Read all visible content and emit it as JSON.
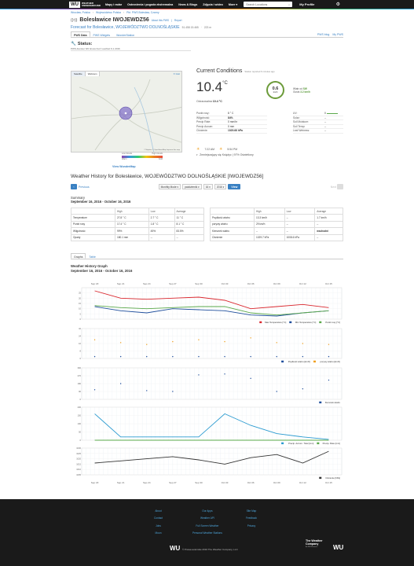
{
  "topbar": {
    "logo_mark": "WU",
    "logo_line1": "WEATHER",
    "logo_line2": "UNDERGROUND",
    "nav": [
      "Mapy i radar",
      "Ostrzeżenia i pogoda ekstremalna",
      "News & Blogs",
      "Zdjęcia i wideo",
      "More"
    ],
    "search_placeholder": "Search Locations",
    "profile": "My Profile"
  },
  "breadcrumb": [
    "Wrocław, Polska",
    "Województwo Polska",
    "Pkt. PWS Bolesław, Czarny"
  ],
  "station": {
    "name": "Bolesławice IWOJEWDZ56",
    "about": "About this PWS",
    "report": "Report"
  },
  "forecast": {
    "label": "Forecast for Bolesławice, WOJEWÓDZTWO DOLNOŚLĄSKIE",
    "coords": "51.458 15.465",
    "elev": "223 m"
  },
  "tabs": [
    "PWS Data",
    "PWS Widgets",
    "WunderStation"
  ],
  "tabs_right": [
    "PWS blog",
    "My PWS"
  ],
  "status": {
    "title": "Status:",
    "line": "PWS-Fenster 6/0 Gruss Kurz Laufzeit 6.1 2016"
  },
  "map": {
    "tabs": [
      "Satellite",
      "Webcam"
    ],
    "close": "✕ Gist",
    "attr": "© Mapbox © OpenStreetMap Improve this map",
    "scale_low": "Low Clouds",
    "scale_high": "High Clouds",
    "scale_warm": "Warm",
    "scale_cold": "Cold",
    "link": "View WunderMap"
  },
  "current": {
    "title": "Current Conditions",
    "updated": "Station reported 6 minutes ago",
    "temp": "10.4",
    "temp_unit": "°C",
    "feels_label": "Odczuwalna",
    "feels_value": "10.4 °C",
    "wind_speed": "0.6",
    "wind_unit": "km/h",
    "wind_from_label": "Wiatr od",
    "wind_dir": "SW",
    "gusts_label": "Gusts",
    "gusts_value": "3.2 km/h",
    "left": [
      {
        "k": "Punkt rosy:",
        "v": "8 ° C"
      },
      {
        "k": "Wilgotność:",
        "v": "84%"
      },
      {
        "k": "Precip Rate:",
        "v": "0 mm/hr"
      },
      {
        "k": "Precip Accum:",
        "v": "0 mm"
      },
      {
        "k": "Ciśnienie:",
        "v": "1029.66 hPa"
      }
    ],
    "right": [
      {
        "k": "UV:",
        "v": "0"
      },
      {
        "k": "Solar:",
        "v": "--"
      },
      {
        "k": "Soil Moisture:",
        "v": "--"
      },
      {
        "k": "Soil Temp:",
        "v": "--"
      },
      {
        "k": "Leaf Wetness:",
        "v": "--"
      }
    ],
    "sunrise": "7:22 AM",
    "sunset": "5:54 PM",
    "moon": "Zmniejszający się Księżyc | 97% Oświetlony"
  },
  "history": {
    "title": "Weather History for Bolesławice, WOJEWÓDZTWO DOLNOŚLĄSKIE [IWOJEWDZ56]",
    "prev": "Previous",
    "mode": "Monthly Mode",
    "month": "październik",
    "day": "16",
    "year": "2016",
    "view": "View",
    "next": "Next",
    "summary_label": "Summary",
    "summary_range": "September 16, 2016 - October 16, 2016"
  },
  "table_left": {
    "headers": [
      "",
      "High",
      "Low",
      "Average"
    ],
    "rows": [
      [
        "Temperature",
        "27.8 ° C",
        "2.7 ° C",
        "11 ° C"
      ],
      [
        "Punkt rosy",
        "17.4 ° C",
        "1.8 ° C",
        "8.1 ° C"
      ],
      [
        "Wilgotność",
        "99%",
        "45%",
        "83.5%"
      ],
      [
        "Opady",
        "180.1 mm",
        "--",
        "--"
      ]
    ]
  },
  "table_right": {
    "headers": [
      "",
      "High",
      "Low",
      "Average"
    ],
    "rows": [
      [
        "Prędkość wiatru",
        "13.3 km/h",
        "--",
        "1.7 km/h"
      ],
      [
        "porywy wiatru",
        "29 km/h",
        "--",
        "--"
      ],
      [
        "Kierunek wiatru",
        "--",
        "--",
        "wschodni"
      ],
      [
        "Ciśnienie",
        "1029.7 hPa",
        "1008.6 hPa",
        "--"
      ]
    ]
  },
  "graph_tabs": [
    "Graphs",
    "Table"
  ],
  "graph": {
    "title": "Weather History Graph",
    "range": "September 16, 2016 - October 16, 2016"
  },
  "chart_data": [
    {
      "type": "line",
      "x": [
        "Sep 18",
        "Sep 21",
        "Sep 24",
        "Sep 27",
        "Sep 30",
        "Oct 03",
        "Oct 06",
        "Oct 09",
        "Oct 12",
        "Oct 15"
      ],
      "ylim": [
        0,
        30
      ],
      "yticks": [
        0,
        5,
        10,
        15,
        20,
        25
      ],
      "series": [
        {
          "name": "Max Temperature [°C]",
          "color": "#d9272e",
          "values": [
            27,
            20,
            19,
            20,
            21,
            18,
            10,
            12,
            14,
            11
          ]
        },
        {
          "name": "Min Temperature [°C]",
          "color": "#1f4e9c",
          "values": [
            12,
            8,
            6,
            10,
            9,
            8,
            4,
            3,
            6,
            8
          ]
        },
        {
          "name": "Punkt rosy [°C]",
          "color": "#5aa84a",
          "values": [
            13,
            11,
            10,
            11,
            12,
            12,
            6,
            4,
            6,
            8
          ]
        }
      ]
    },
    {
      "type": "scatter",
      "x": [
        "Sep 18",
        "Sep 21",
        "Sep 24",
        "Sep 27",
        "Sep 30",
        "Oct 03",
        "Oct 06",
        "Oct 09",
        "Oct 12",
        "Oct 15"
      ],
      "ylim": [
        0,
        32
      ],
      "yticks": [
        0,
        8,
        16,
        24,
        32
      ],
      "series": [
        {
          "name": "Prędkość wiatru [km/h]",
          "color": "#1f4e9c",
          "values": [
            2,
            2,
            2,
            2,
            2,
            2,
            2,
            2,
            2,
            2
          ]
        },
        {
          "name": "porywy wiatru [km/h]",
          "color": "#f0a020",
          "values": [
            20,
            17,
            15,
            18,
            20,
            18,
            22,
            17,
            16,
            15
          ]
        }
      ]
    },
    {
      "type": "scatter",
      "x": [
        "Sep 18",
        "Sep 21",
        "Sep 24",
        "Sep 27",
        "Sep 30",
        "Oct 03",
        "Oct 06",
        "Oct 09",
        "Oct 12",
        "Oct 15"
      ],
      "ylim": [
        0,
        360
      ],
      "yticks": [
        0,
        90,
        180,
        270,
        360
      ],
      "series": [
        {
          "name": "Kierunek wiatru",
          "color": "#1f4e9c",
          "values": [
            110,
            180,
            100,
            90,
            280,
            290,
            240,
            90,
            120,
            220
          ]
        }
      ]
    },
    {
      "type": "line",
      "x": [
        "Sep 18",
        "Sep 21",
        "Sep 24",
        "Sep 27",
        "Sep 30",
        "Oct 03",
        "Oct 06",
        "Oct 09",
        "Oct 12",
        "Oct 15"
      ],
      "ylim": [
        0,
        200
      ],
      "yticks": [
        0,
        50,
        100,
        150,
        200
      ],
      "series": [
        {
          "name": "Precip. Accum. Total [mm]",
          "color": "#2a9ad0",
          "values": [
            160,
            20,
            20,
            20,
            20,
            160,
            90,
            40,
            20,
            5
          ]
        },
        {
          "name": "Precip. Rate [mm]",
          "color": "#5aa84a",
          "values": [
            0,
            0,
            0,
            0,
            0,
            0,
            0,
            0,
            0,
            0
          ]
        }
      ]
    },
    {
      "type": "line",
      "x": [
        "Sep 18",
        "Sep 21",
        "Sep 24",
        "Sep 27",
        "Sep 30",
        "Oct 03",
        "Oct 06",
        "Oct 09",
        "Oct 12",
        "Oct 15"
      ],
      "ylim": [
        1005,
        1030
      ],
      "yticks": [
        1005,
        1010,
        1015,
        1020,
        1025,
        1030
      ],
      "series": [
        {
          "name": "Ciśnienie [hPa]",
          "color": "#333333",
          "values": [
            1016,
            1018,
            1020,
            1022,
            1019,
            1015,
            1021,
            1024,
            1016,
            1027
          ]
        }
      ]
    }
  ],
  "footer": {
    "col1": [
      "About",
      "Contact",
      "Jobs",
      "Moon"
    ],
    "col2": [
      "Our Apps",
      "Weather API",
      "Full Screen Weather",
      "Personal Weather Stations"
    ],
    "col3": [
      "Site Map",
      "Feedback",
      "Privacy"
    ],
    "copyright": "© Prawa autorskie 2016 The Weather Company, LLC",
    "logo": "WU",
    "corp": "The Weather Company",
    "corp_sub": "An IBM Business"
  }
}
